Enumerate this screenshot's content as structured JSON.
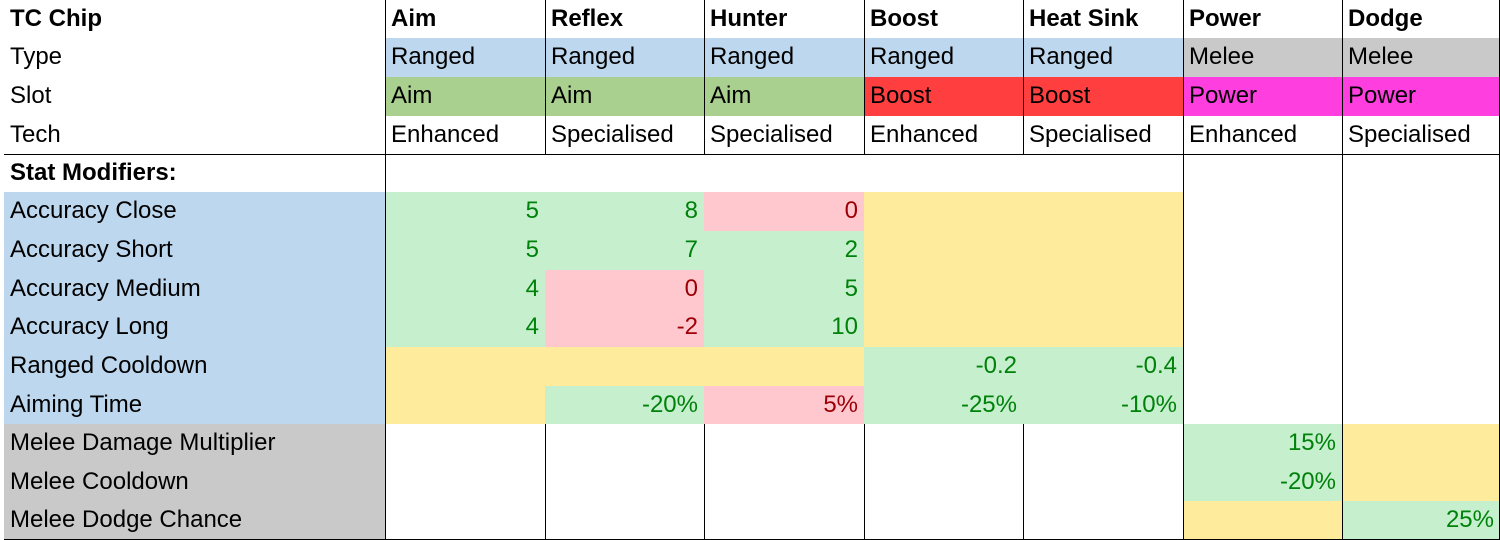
{
  "sheet": {
    "header": [
      "TC Chip",
      "Aim",
      "Reflex",
      "Hunter",
      "Boost",
      "Heat Sink",
      "Power",
      "Dodge"
    ],
    "type_row": {
      "label": "Type",
      "values": [
        "Ranged",
        "Ranged",
        "Ranged",
        "Ranged",
        "Ranged",
        "Melee",
        "Melee"
      ],
      "fills": [
        "#bdd7ee",
        "#bdd7ee",
        "#bdd7ee",
        "#bdd7ee",
        "#bdd7ee",
        "#c9c9c9",
        "#c9c9c9"
      ]
    },
    "slot_row": {
      "label": "Slot",
      "values": [
        "Aim",
        "Aim",
        "Aim",
        "Boost",
        "Boost",
        "Power",
        "Power"
      ],
      "fills": [
        "#a9d08e",
        "#a9d08e",
        "#a9d08e",
        "#ff3f3f",
        "#ff3f3f",
        "#ff3ee0",
        "#ff3ee0"
      ]
    },
    "tech_row": {
      "label": "Tech",
      "values": [
        "Enhanced",
        "Specialised",
        "Specialised",
        "Enhanced",
        "Specialised",
        "Enhanced",
        "Specialised"
      ]
    },
    "section_label": "Stat Modifiers:",
    "stats": [
      {
        "label": "Accuracy Close",
        "label_fill": "#bdd7ee",
        "values": [
          "5",
          "8",
          "0",
          "",
          "",
          "",
          ""
        ],
        "fills": [
          "#c6efce",
          "#c6efce",
          "#ffc7ce",
          "#ffeb9c",
          "#ffeb9c",
          "#ffffff",
          "#ffffff"
        ],
        "text_colors": [
          "#00810a",
          "#00810a",
          "#9c0006",
          "#000000",
          "#000000",
          "#000000",
          "#000000"
        ]
      },
      {
        "label": "Accuracy Short",
        "label_fill": "#bdd7ee",
        "values": [
          "5",
          "7",
          "2",
          "",
          "",
          "",
          ""
        ],
        "fills": [
          "#c6efce",
          "#c6efce",
          "#c6efce",
          "#ffeb9c",
          "#ffeb9c",
          "#ffffff",
          "#ffffff"
        ],
        "text_colors": [
          "#00810a",
          "#00810a",
          "#00810a",
          "#000000",
          "#000000",
          "#000000",
          "#000000"
        ]
      },
      {
        "label": "Accuracy Medium",
        "label_fill": "#bdd7ee",
        "values": [
          "4",
          "0",
          "5",
          "",
          "",
          "",
          ""
        ],
        "fills": [
          "#c6efce",
          "#ffc7ce",
          "#c6efce",
          "#ffeb9c",
          "#ffeb9c",
          "#ffffff",
          "#ffffff"
        ],
        "text_colors": [
          "#00810a",
          "#9c0006",
          "#00810a",
          "#000000",
          "#000000",
          "#000000",
          "#000000"
        ]
      },
      {
        "label": "Accuracy Long",
        "label_fill": "#bdd7ee",
        "values": [
          "4",
          "-2",
          "10",
          "",
          "",
          "",
          ""
        ],
        "fills": [
          "#c6efce",
          "#ffc7ce",
          "#c6efce",
          "#ffeb9c",
          "#ffeb9c",
          "#ffffff",
          "#ffffff"
        ],
        "text_colors": [
          "#00810a",
          "#9c0006",
          "#00810a",
          "#000000",
          "#000000",
          "#000000",
          "#000000"
        ]
      },
      {
        "label": "Ranged Cooldown",
        "label_fill": "#bdd7ee",
        "values": [
          "",
          "",
          "",
          "-0.2",
          "-0.4",
          "",
          ""
        ],
        "fills": [
          "#ffeb9c",
          "#ffeb9c",
          "#ffeb9c",
          "#c6efce",
          "#c6efce",
          "#ffffff",
          "#ffffff"
        ],
        "text_colors": [
          "#000000",
          "#000000",
          "#000000",
          "#00810a",
          "#00810a",
          "#000000",
          "#000000"
        ]
      },
      {
        "label": "Aiming Time",
        "label_fill": "#bdd7ee",
        "values": [
          "",
          "-20%",
          "5%",
          "-25%",
          "-10%",
          "",
          ""
        ],
        "fills": [
          "#ffeb9c",
          "#c6efce",
          "#ffc7ce",
          "#c6efce",
          "#c6efce",
          "#ffffff",
          "#ffffff"
        ],
        "text_colors": [
          "#000000",
          "#00810a",
          "#9c0006",
          "#00810a",
          "#00810a",
          "#000000",
          "#000000"
        ]
      },
      {
        "label": "Melee Damage Multiplier",
        "label_fill": "#c9c9c9",
        "values": [
          "",
          "",
          "",
          "",
          "",
          "15%",
          ""
        ],
        "fills": [
          "#ffffff",
          "#ffffff",
          "#ffffff",
          "#ffffff",
          "#ffffff",
          "#c6efce",
          "#ffeb9c"
        ],
        "text_colors": [
          "#000000",
          "#000000",
          "#000000",
          "#000000",
          "#000000",
          "#00810a",
          "#000000"
        ]
      },
      {
        "label": "Melee Cooldown",
        "label_fill": "#c9c9c9",
        "values": [
          "",
          "",
          "",
          "",
          "",
          "-20%",
          ""
        ],
        "fills": [
          "#ffffff",
          "#ffffff",
          "#ffffff",
          "#ffffff",
          "#ffffff",
          "#c6efce",
          "#ffeb9c"
        ],
        "text_colors": [
          "#000000",
          "#000000",
          "#000000",
          "#000000",
          "#000000",
          "#00810a",
          "#000000"
        ]
      },
      {
        "label": "Melee Dodge Chance",
        "label_fill": "#c9c9c9",
        "values": [
          "",
          "",
          "",
          "",
          "",
          "",
          "25%"
        ],
        "fills": [
          "#ffffff",
          "#ffffff",
          "#ffffff",
          "#ffffff",
          "#ffffff",
          "#ffeb9c",
          "#c6efce"
        ],
        "text_colors": [
          "#000000",
          "#000000",
          "#000000",
          "#000000",
          "#000000",
          "#000000",
          "#00810a"
        ]
      }
    ]
  }
}
